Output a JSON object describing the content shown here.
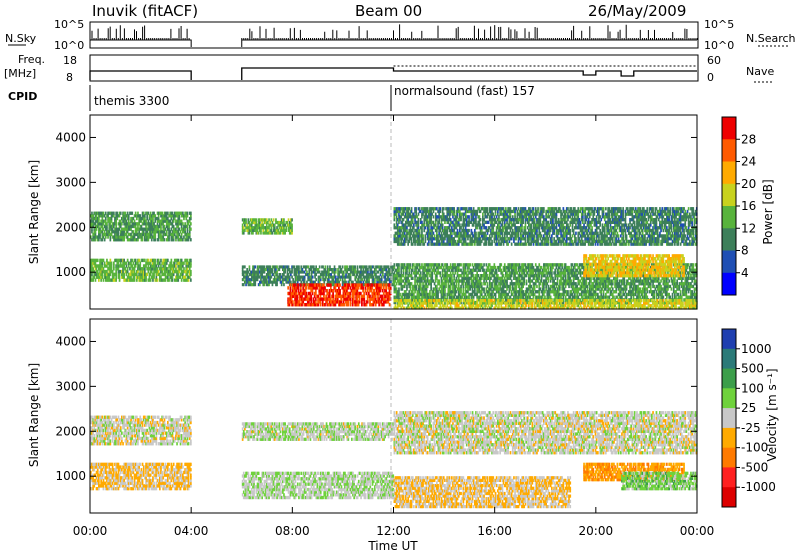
{
  "header": {
    "station": "Inuvik (fitACF)",
    "beam": "Beam 00",
    "date": "26/May/2009"
  },
  "panels": {
    "nsky_label": "N.Sky",
    "nsky_ticks": [
      "10^5",
      "10^0"
    ],
    "nsearch_label": "N.Search",
    "nsearch_ticks": [
      "10^5",
      "10^0"
    ],
    "freq_label_1": "Freq.",
    "freq_label_2": "[MHz]",
    "freq_ticks": [
      "18",
      "8"
    ],
    "nave_label": "Nave",
    "nave_ticks": [
      "60",
      "0"
    ],
    "cpid_label": "CPID",
    "cpid_modes": [
      {
        "text": "themis 3300",
        "start_hour": 0
      },
      {
        "text": "normalsound (fast) 157",
        "start_hour": 12
      }
    ]
  },
  "power_panel": {
    "ylabel": "Slant Range [km]",
    "yticks": [
      "1000",
      "2000",
      "3000",
      "4000"
    ],
    "colorbar_label": "Power [dB]",
    "colorbar_ticks": [
      "4",
      "8",
      "12",
      "16",
      "20",
      "24",
      "28"
    ],
    "colors": [
      "#0000ff",
      "#1f4fb4",
      "#3d7f5a",
      "#58b33c",
      "#c8d21e",
      "#ffaa00",
      "#ff5a00",
      "#ee0000"
    ]
  },
  "velocity_panel": {
    "ylabel": "Slant Range [km]",
    "yticks": [
      "1000",
      "2000",
      "3000",
      "4000"
    ],
    "colorbar_label": "Velocity [m s⁻¹]",
    "colorbar_ticks": [
      "1000",
      "500",
      "100",
      "25",
      "-25",
      "-100",
      "-500",
      "-1000"
    ],
    "colors": [
      "#1f3fb0",
      "#2b7a78",
      "#3c9e4a",
      "#6fd23c",
      "#c8c8c8",
      "#ffaa00",
      "#ff7a00",
      "#ff2020",
      "#dd0000"
    ]
  },
  "x_axis": {
    "label": "Time UT",
    "ticks": [
      "00:00",
      "04:00",
      "08:00",
      "12:00",
      "16:00",
      "20:00",
      "00:00"
    ]
  },
  "chart_data": {
    "type": "heatmap",
    "title": "Inuvik (fitACF) Beam 00 26/May/2009",
    "xlabel": "Time UT",
    "ylabel": "Slant Range [km]",
    "xlim": [
      0,
      24
    ],
    "ylim": [
      180,
      4500
    ],
    "data_gap_hours": [
      4,
      6
    ],
    "panels": [
      {
        "name": "Power",
        "unit": "dB",
        "colorbar_range": [
          0,
          32
        ],
        "regions": [
          {
            "t": [
              0.0,
              4.0
            ],
            "r": [
              1700,
              2350
            ],
            "v": 12
          },
          {
            "t": [
              0.0,
              4.0
            ],
            "r": [
              800,
              1300
            ],
            "v": 14
          },
          {
            "t": [
              6.0,
              8.0
            ],
            "r": [
              1850,
              2200
            ],
            "v": 14
          },
          {
            "t": [
              6.0,
              12.0
            ],
            "r": [
              700,
              1150
            ],
            "v": 10
          },
          {
            "t": [
              7.8,
              11.9
            ],
            "r": [
              250,
              750
            ],
            "v": 28
          },
          {
            "t": [
              12.0,
              24.0
            ],
            "r": [
              1600,
              2450
            ],
            "v": 10
          },
          {
            "t": [
              12.0,
              24.0
            ],
            "r": [
              300,
              1200
            ],
            "v": 12
          },
          {
            "t": [
              19.5,
              23.5
            ],
            "r": [
              900,
              1400
            ],
            "v": 20
          },
          {
            "t": [
              12.0,
              24.0
            ],
            "r": [
              180,
              400
            ],
            "v": 18
          }
        ]
      },
      {
        "name": "Velocity",
        "unit": "m s-1",
        "colorbar_range": [
          -1000,
          1000
        ],
        "regions": [
          {
            "t": [
              0.0,
              4.0
            ],
            "r": [
              1700,
              2350
            ],
            "v": 0
          },
          {
            "t": [
              0.0,
              4.0
            ],
            "r": [
              700,
              1300
            ],
            "v": -150
          },
          {
            "t": [
              6.0,
              12.0
            ],
            "r": [
              1800,
              2200
            ],
            "v": 50
          },
          {
            "t": [
              6.0,
              12.0
            ],
            "r": [
              500,
              1100
            ],
            "v": 80
          },
          {
            "t": [
              12.0,
              24.0
            ],
            "r": [
              1500,
              2450
            ],
            "v": 0
          },
          {
            "t": [
              12.0,
              19.0
            ],
            "r": [
              300,
              1000
            ],
            "v": -120
          },
          {
            "t": [
              19.5,
              23.5
            ],
            "r": [
              900,
              1300
            ],
            "v": -300
          },
          {
            "t": [
              21.0,
              24.0
            ],
            "r": [
              700,
              1100
            ],
            "v": 200
          }
        ]
      }
    ]
  }
}
